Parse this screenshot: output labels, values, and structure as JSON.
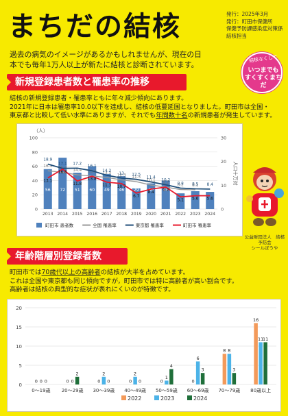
{
  "header": {
    "title": "まちだの結核",
    "publisher_lines": [
      "発行：2025年3月",
      "発行：町田市保健所",
      "保健予防課感染症対策係",
      "結核担当"
    ],
    "lead": "過去の病気のイメージがあるかもしれませんが、現在の日本でも毎年1万人以上が新たに結核と診断されています。"
  },
  "badge": {
    "arc_text": "結核なくして",
    "line1": "いつまでも",
    "line2": "すくすくまちだ"
  },
  "section1": {
    "title": "新規登録患者数と罹患率の推移",
    "para_lines": [
      "結核の新規登録患者・罹患率ともに年々減少傾向にあります。",
      "2021年に日本は罹患率10.0以下を達成し、結核の低蔓延国となりました。町田市は全国・",
      "東京都と比較して低い水準にありますが、それでも"
    ],
    "para_underline": "年間数十名",
    "para_tail": "の新規患者が発生しています。"
  },
  "section2": {
    "title": "年齢階層別登録者数",
    "para_lines_pre": "町田市では",
    "underline": "70歳代以上の高齢者",
    "para_line1_tail": "の結核が大半を占めています。",
    "para_line2": "これは全国や東京都も同じ傾向ですが，町田市では特に高齢者が高い割合です。",
    "para_line3": "高齢者は結核の典型的な症状が表れにくいのが特徴です。"
  },
  "mascot": {
    "caption_line1": "公益財団法人　結核予防会",
    "caption_line2": "シールぼうや"
  },
  "chart_data": [
    {
      "type": "bar+line",
      "title": "",
      "y_left_label": "（人）",
      "y_right_label": "人口十万対",
      "y_left_lim": [
        0,
        100
      ],
      "y_right_lim": [
        0,
        30
      ],
      "categories": [
        "2013",
        "2014",
        "2015",
        "2016",
        "2017",
        "2018",
        "2019",
        "2020",
        "2021",
        "2022",
        "2023",
        "2024"
      ],
      "series": [
        {
          "name": "町田市 患者数",
          "kind": "bar",
          "color": "#4f81bd",
          "values": [
            56,
            72,
            51,
            60,
            49,
            46,
            29,
            36,
            40,
            22,
            25,
            24
          ]
        },
        {
          "name": "全国 罹患率",
          "kind": "line",
          "color": "#9a9a9a",
          "values": [
            16.1,
            15.4,
            14.4,
            13.9,
            13.3,
            12.3,
            11.5,
            10.1,
            9.2,
            8.2,
            8.1,
            null
          ]
        },
        {
          "name": "東京都 罹患率",
          "kind": "line",
          "color": "#1f4e79",
          "values": [
            18.9,
            17.1,
            17.2,
            16.1,
            14.2,
            13,
            12.5,
            11.4,
            10.2,
            8.8,
            8.5,
            8.4
          ]
        },
        {
          "name": "町田市 罹患率",
          "kind": "line",
          "color": "#e8192c",
          "values": [
            13.1,
            16.8,
            11.8,
            13.8,
            11.3,
            10.7,
            6.7,
            8.4,
            9.2,
            5.1,
            5.6,
            5.6
          ]
        }
      ]
    },
    {
      "type": "bar",
      "title": "",
      "y_lim": [
        0,
        20
      ],
      "categories": [
        "0～19歳",
        "20～29歳",
        "30～39歳",
        "40～49歳",
        "50～59歳",
        "60～69歳",
        "70～79歳",
        "80歳以上"
      ],
      "series": [
        {
          "name": "2022",
          "color": "#f39a5a",
          "values": [
            0,
            0,
            0,
            0,
            0,
            0,
            8,
            16
          ]
        },
        {
          "name": "2023",
          "color": "#4cb3e8",
          "values": [
            0,
            0,
            2,
            2,
            1,
            6,
            8,
            11
          ]
        },
        {
          "name": "2024",
          "color": "#1f6f3a",
          "values": [
            0,
            2,
            0,
            0,
            4,
            3,
            3,
            11
          ]
        }
      ]
    }
  ]
}
